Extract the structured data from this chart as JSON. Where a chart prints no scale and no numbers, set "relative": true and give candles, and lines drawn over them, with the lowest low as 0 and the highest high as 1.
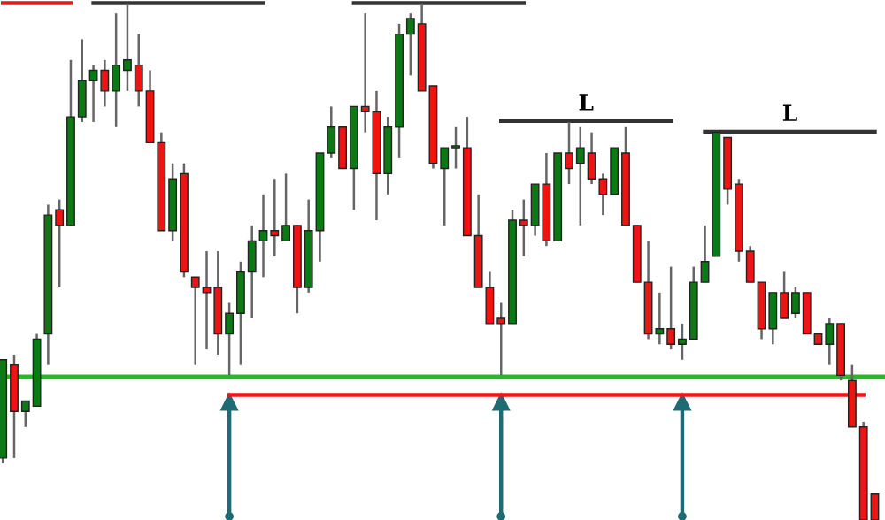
{
  "chart_data": {
    "type": "candlestick",
    "relative": true,
    "categories": [
      null,
      null,
      null,
      null,
      null,
      null,
      null,
      null,
      null,
      null,
      null,
      null,
      null,
      null,
      null,
      null,
      null,
      null,
      null,
      null,
      null,
      null,
      null,
      null,
      null,
      null,
      null,
      null,
      null,
      null,
      null,
      null,
      null,
      null,
      null,
      null,
      null,
      null,
      null,
      null,
      null,
      null,
      null,
      null,
      null,
      null,
      null,
      null,
      null,
      null,
      null,
      null,
      null,
      null,
      null,
      null,
      null,
      null,
      null,
      null,
      null,
      null,
      null,
      null,
      null,
      null,
      null,
      null,
      null,
      null,
      null,
      null,
      null,
      null,
      null,
      null,
      null,
      null
    ],
    "ohlc": [
      [
        0.12,
        0.31,
        0.11,
        0.31
      ],
      [
        0.3,
        0.32,
        0.12,
        0.21
      ],
      [
        0.21,
        0.23,
        0.18,
        0.23
      ],
      [
        0.22,
        0.36,
        0.22,
        0.35
      ],
      [
        0.36,
        0.61,
        0.3,
        0.59
      ],
      [
        0.6,
        0.62,
        0.45,
        0.57
      ],
      [
        0.57,
        0.89,
        0.57,
        0.78
      ],
      [
        0.78,
        0.93,
        0.77,
        0.85
      ],
      [
        0.85,
        0.88,
        0.77,
        0.87
      ],
      [
        0.87,
        0.89,
        0.8,
        0.83
      ],
      [
        0.83,
        0.98,
        0.76,
        0.88
      ],
      [
        0.87,
        1.0,
        0.83,
        0.89
      ],
      [
        0.88,
        0.94,
        0.8,
        0.83
      ],
      [
        0.83,
        0.87,
        0.73,
        0.73
      ],
      [
        0.73,
        0.75,
        0.56,
        0.56
      ],
      [
        0.56,
        0.69,
        0.54,
        0.66
      ],
      [
        0.67,
        0.69,
        0.47,
        0.48
      ],
      [
        0.47,
        0.47,
        0.3,
        0.45
      ],
      [
        0.45,
        0.52,
        0.33,
        0.44
      ],
      [
        0.45,
        0.52,
        0.32,
        0.36
      ],
      [
        0.36,
        0.42,
        0.28,
        0.4
      ],
      [
        0.4,
        0.5,
        0.3,
        0.48
      ],
      [
        0.48,
        0.57,
        0.39,
        0.54
      ],
      [
        0.54,
        0.63,
        0.47,
        0.56
      ],
      [
        0.56,
        0.66,
        0.51,
        0.55
      ],
      [
        0.54,
        0.67,
        0.54,
        0.57
      ],
      [
        0.57,
        0.57,
        0.4,
        0.45
      ],
      [
        0.45,
        0.62,
        0.44,
        0.56
      ],
      [
        0.56,
        0.71,
        0.5,
        0.71
      ],
      [
        0.71,
        0.8,
        0.7,
        0.76
      ],
      [
        0.76,
        0.76,
        0.68,
        0.68
      ],
      [
        0.68,
        0.8,
        0.6,
        0.8
      ],
      [
        0.8,
        0.98,
        0.75,
        0.79
      ],
      [
        0.79,
        0.83,
        0.58,
        0.67
      ],
      [
        0.67,
        0.78,
        0.63,
        0.76
      ],
      [
        0.76,
        0.96,
        0.7,
        0.94
      ],
      [
        0.94,
        0.98,
        0.86,
        0.97
      ],
      [
        0.96,
        1.0,
        0.83,
        0.83
      ],
      [
        0.84,
        0.84,
        0.68,
        0.69
      ],
      [
        0.68,
        0.72,
        0.57,
        0.72
      ],
      [
        0.72,
        0.76,
        0.68,
        0.72
      ],
      [
        0.72,
        0.78,
        0.55,
        0.55
      ],
      [
        0.55,
        0.63,
        0.45,
        0.45
      ],
      [
        0.45,
        0.48,
        0.38,
        0.38
      ],
      [
        0.39,
        0.42,
        0.28,
        0.38
      ],
      [
        0.38,
        0.6,
        0.38,
        0.58
      ],
      [
        0.58,
        0.62,
        0.51,
        0.57
      ],
      [
        0.57,
        0.65,
        0.55,
        0.65
      ],
      [
        0.65,
        0.71,
        0.53,
        0.54
      ],
      [
        0.54,
        0.71,
        0.54,
        0.71
      ],
      [
        0.71,
        0.77,
        0.65,
        0.68
      ],
      [
        0.69,
        0.76,
        0.57,
        0.72
      ],
      [
        0.71,
        0.75,
        0.65,
        0.66
      ],
      [
        0.66,
        0.67,
        0.59,
        0.63
      ],
      [
        0.63,
        0.72,
        0.63,
        0.72
      ],
      [
        0.71,
        0.76,
        0.57,
        0.57
      ],
      [
        0.57,
        0.57,
        0.46,
        0.46
      ],
      [
        0.46,
        0.54,
        0.35,
        0.36
      ],
      [
        0.36,
        0.44,
        0.34,
        0.37
      ],
      [
        0.37,
        0.49,
        0.33,
        0.34
      ],
      [
        0.34,
        0.38,
        0.31,
        0.35
      ],
      [
        0.35,
        0.49,
        0.35,
        0.46
      ],
      [
        0.46,
        0.57,
        0.46,
        0.5
      ],
      [
        0.51,
        0.75,
        0.51,
        0.75
      ],
      [
        0.74,
        0.74,
        0.61,
        0.64
      ],
      [
        0.65,
        0.66,
        0.5,
        0.52
      ],
      [
        0.52,
        0.53,
        0.46,
        0.46
      ],
      [
        0.46,
        0.46,
        0.35,
        0.37
      ],
      [
        0.37,
        0.44,
        0.34,
        0.44
      ],
      [
        0.44,
        0.48,
        0.39,
        0.39
      ],
      [
        0.4,
        0.45,
        0.39,
        0.44
      ],
      [
        0.44,
        0.44,
        0.36,
        0.36
      ],
      [
        0.36,
        0.36,
        0.34,
        0.34
      ],
      [
        0.34,
        0.39,
        0.3,
        0.38
      ],
      [
        0.38,
        0.38,
        0.27,
        0.28
      ],
      [
        0.27,
        0.3,
        0.18,
        0.18
      ],
      [
        0.18,
        0.19,
        0,
        0
      ],
      [
        0.05,
        0.05,
        0,
        0
      ]
    ],
    "colors": [
      "#0b7a14",
      "#ee1414",
      "#0b7a14",
      "#0b7a14",
      "#0b7a14",
      "#ee1414",
      "#0b7a14",
      "#0b7a14",
      "#0b7a14",
      "#ee1414",
      "#0b7a14",
      "#0b7a14",
      "#ee1414",
      "#ee1414",
      "#ee1414",
      "#0b7a14",
      "#ee1414",
      "#ee1414",
      "#ee1414",
      "#ee1414",
      "#0b7a14",
      "#0b7a14",
      "#0b7a14",
      "#0b7a14",
      "#ee1414",
      "#0b7a14",
      "#ee1414",
      "#0b7a14",
      "#0b7a14",
      "#0b7a14",
      "#ee1414",
      "#0b7a14",
      "#ee1414",
      "#ee1414",
      "#0b7a14",
      "#0b7a14",
      "#0b7a14",
      "#ee1414",
      "#ee1414",
      "#0b7a14",
      "#0b7a14",
      "#ee1414",
      "#ee1414",
      "#ee1414",
      "#ee1414",
      "#0b7a14",
      "#ee1414",
      "#0b7a14",
      "#ee1414",
      "#0b7a14",
      "#ee1414",
      "#0b7a14",
      "#ee1414",
      "#ee1414",
      "#0b7a14",
      "#ee1414",
      "#ee1414",
      "#ee1414",
      "#0b7a14",
      "#ee1414",
      "#0b7a14",
      "#0b7a14",
      "#0b7a14",
      "#0b7a14",
      "#ee1414",
      "#ee1414",
      "#ee1414",
      "#ee1414",
      "#0b7a14",
      "#ee1414",
      "#0b7a14",
      "#ee1414",
      "#ee1414",
      "#0b7a14",
      "#ee1414",
      "#ee1414",
      "#ee1414",
      "#ee1414"
    ],
    "series": [
      {
        "type": "scatter",
        "color": "#1f6b73",
        "marker": "triangle",
        "values": [
          null,
          null,
          null,
          null,
          null,
          null,
          null,
          null,
          null,
          null,
          null,
          null,
          null,
          null,
          null,
          null,
          null,
          null,
          null,
          null,
          0.228,
          null,
          null,
          null,
          null,
          null,
          null,
          null,
          null,
          null,
          null,
          null,
          null,
          null,
          null,
          null,
          null,
          null,
          null,
          null,
          null,
          null,
          null,
          null,
          0.228,
          null,
          null,
          null,
          null,
          null,
          null,
          null,
          null,
          null,
          null,
          null,
          null,
          null,
          null,
          null,
          0.228,
          null,
          null,
          null,
          null,
          null,
          null,
          null,
          null,
          null,
          null,
          null,
          null,
          null,
          null,
          null,
          null,
          null
        ]
      },
      {
        "type": "line",
        "color": "#e31b1b",
        "values": [
          1.0,
          1.0,
          1.0,
          1.0,
          1.0,
          1.0,
          1.0,
          null,
          null,
          null,
          null,
          null,
          null,
          null,
          null,
          null,
          null,
          null,
          null,
          null,
          null,
          null,
          null,
          null,
          null,
          null,
          null,
          null,
          null,
          null,
          null,
          null,
          null,
          null,
          null,
          null,
          null,
          null,
          null,
          null,
          null,
          null,
          null,
          null,
          null,
          null,
          null,
          null,
          null,
          null,
          null,
          null,
          null,
          null,
          null,
          null,
          null,
          null,
          null,
          null,
          null,
          null,
          null,
          null,
          null,
          null,
          null,
          null,
          null,
          null,
          null,
          null,
          null,
          null,
          null,
          null,
          null,
          null
        ]
      },
      {
        "type": "line",
        "color": "#333333",
        "values": [
          null,
          null,
          null,
          null,
          null,
          null,
          null,
          null,
          1.0,
          1.0,
          1.0,
          1.0,
          1.0,
          1.0,
          1.0,
          1.0,
          1.0,
          1.0,
          1.0,
          1.0,
          1.0,
          1.0,
          1.0,
          1.0,
          null,
          null,
          null,
          null,
          null,
          null,
          null,
          null,
          null,
          null,
          null,
          null,
          null,
          null,
          null,
          null,
          null,
          null,
          null,
          null,
          null,
          null,
          null,
          null,
          null,
          null,
          null,
          null,
          null,
          null,
          null,
          null,
          null,
          null,
          null,
          null,
          null,
          null,
          null,
          null,
          null,
          null,
          null,
          null,
          null,
          null,
          null,
          null,
          null,
          null,
          null,
          null,
          null,
          null
        ]
      },
      {
        "type": "line",
        "color": "#333333",
        "values": [
          null,
          null,
          null,
          null,
          null,
          null,
          null,
          null,
          null,
          null,
          null,
          null,
          null,
          null,
          null,
          null,
          null,
          null,
          null,
          null,
          null,
          null,
          null,
          null,
          null,
          null,
          null,
          null,
          null,
          null,
          null,
          1.0,
          1.0,
          1.0,
          1.0,
          1.0,
          1.0,
          1.0,
          1.0,
          1.0,
          1.0,
          1.0,
          1.0,
          1.0,
          1.0,
          1.0,
          1.0,
          null,
          null,
          null,
          null,
          null,
          null,
          null,
          null,
          null,
          null,
          null,
          null,
          null,
          null,
          null,
          null,
          null,
          null,
          null,
          null,
          null,
          null,
          null,
          null,
          null,
          null,
          null,
          null,
          null,
          null,
          null
        ]
      },
      {
        "type": "line",
        "color": "#e31b1b",
        "values": [
          null,
          null,
          null,
          null,
          null,
          null,
          null,
          null,
          null,
          null,
          null,
          null,
          null,
          null,
          null,
          null,
          null,
          null,
          null,
          null,
          0.242,
          0.242,
          0.242,
          0.242,
          0.242,
          0.242,
          0.242,
          0.242,
          0.242,
          0.242,
          0.242,
          0.242,
          0.242,
          0.242,
          0.242,
          0.242,
          0.242,
          0.242,
          0.242,
          0.242,
          0.242,
          0.242,
          0.242,
          0.242,
          0.242,
          0.242,
          0.242,
          0.242,
          0.242,
          0.242,
          0.242,
          0.242,
          0.242,
          0.242,
          0.242,
          0.242,
          0.242,
          0.242,
          0.242,
          0.242,
          0.242,
          0.242,
          0.242,
          0.242,
          0.242,
          0.242,
          0.242,
          0.242,
          0.242,
          0.242,
          0.242,
          0.242,
          0.242,
          0.242,
          0.242,
          0.242,
          0.242,
          null
        ]
      },
      {
        "type": "line",
        "color": "#333333",
        "values": [
          null,
          null,
          null,
          null,
          null,
          null,
          null,
          null,
          null,
          null,
          null,
          null,
          null,
          null,
          null,
          null,
          null,
          null,
          null,
          null,
          null,
          null,
          null,
          null,
          null,
          null,
          null,
          null,
          null,
          null,
          null,
          null,
          null,
          null,
          null,
          null,
          null,
          null,
          null,
          null,
          null,
          null,
          null,
          null,
          0.772,
          0.772,
          0.772,
          0.772,
          0.772,
          0.772,
          0.772,
          0.772,
          0.772,
          0.772,
          0.772,
          0.772,
          0.772,
          0.772,
          0.772,
          0.772,
          null,
          null,
          null,
          null,
          null,
          null,
          null,
          null,
          null,
          null,
          null,
          null,
          null,
          null,
          null,
          null,
          null,
          null
        ]
      },
      {
        "type": "line",
        "color": "#333333",
        "values": [
          null,
          null,
          null,
          null,
          null,
          null,
          null,
          null,
          null,
          null,
          null,
          null,
          null,
          null,
          null,
          null,
          null,
          null,
          null,
          null,
          null,
          null,
          null,
          null,
          null,
          null,
          null,
          null,
          null,
          null,
          null,
          null,
          null,
          null,
          null,
          null,
          null,
          null,
          null,
          null,
          null,
          null,
          null,
          null,
          null,
          null,
          null,
          null,
          null,
          null,
          null,
          null,
          null,
          null,
          null,
          null,
          null,
          null,
          null,
          null,
          null,
          null,
          0.751,
          0.751,
          0.751,
          0.751,
          0.751,
          0.751,
          0.751,
          0.751,
          0.751,
          0.751,
          0.751,
          0.751,
          0.751,
          0.751,
          0.751,
          0.751
        ]
      }
    ],
    "ref_lines": [
      {
        "axis": "y",
        "value": 0.277,
        "color": "#2db52d"
      }
    ],
    "annotations": [
      "L",
      "L"
    ],
    "grid": false,
    "legend": false
  }
}
